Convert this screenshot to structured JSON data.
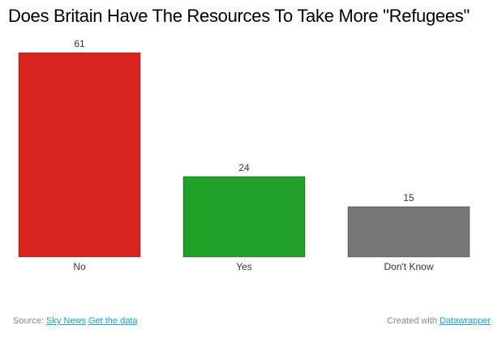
{
  "chart_data": {
    "type": "bar",
    "title": "Does Britain Have The Resources To Take More \"Refugees\"",
    "categories": [
      "No",
      "Yes",
      "Don't Know"
    ],
    "values": [
      61,
      24,
      15
    ],
    "colors": [
      "#d9241f",
      "#21a12a",
      "#777777"
    ],
    "ylim": [
      0,
      61
    ],
    "grid": false,
    "legend": "none"
  },
  "footer": {
    "source_label": "Source:",
    "source_link": "Sky News",
    "data_link": "Get the data",
    "credit_label": "Created with",
    "credit_link": "Datawrapper"
  }
}
